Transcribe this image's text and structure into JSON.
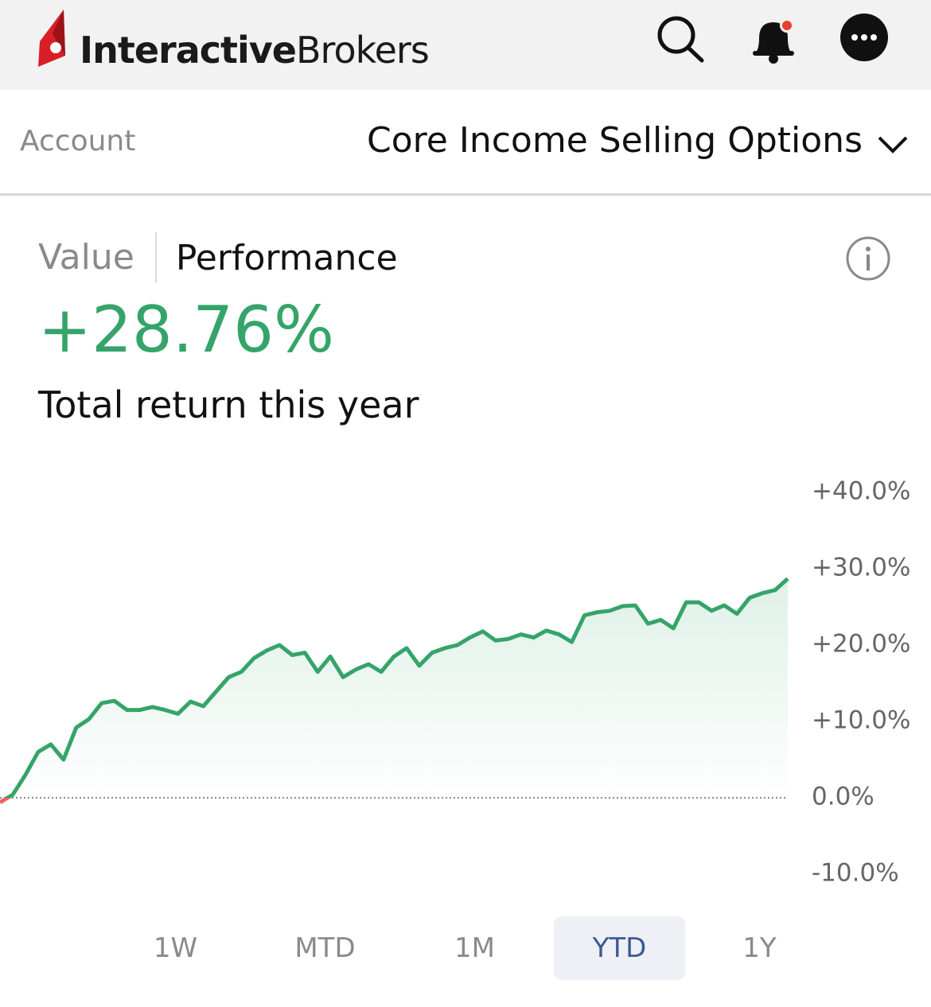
{
  "header": {
    "brand_bold": "Interactive",
    "brand_light": "Brokers"
  },
  "account": {
    "label": "Account",
    "name": "Core Income Selling Options"
  },
  "tabs": [
    "Value",
    "Performance"
  ],
  "summary": {
    "return": "+28.76%",
    "caption": "Total return this year"
  },
  "chart_data": {
    "type": "line",
    "color": "#35a46a",
    "negative_color": "#f0625f",
    "series": [
      {
        "values": [
          -0.6,
          0.4,
          3,
          6,
          7,
          5,
          9.2,
          10.3,
          12.4,
          12.7,
          11.5,
          11.5,
          11.9,
          11.5,
          11,
          12.6,
          12,
          13.9,
          15.8,
          16.5,
          18.3,
          19.3,
          20,
          18.7,
          19,
          16.5,
          18.5,
          15.8,
          16.8,
          17.5,
          16.5,
          18.5,
          19.6,
          17.3,
          19,
          19.6,
          20,
          21,
          21.8,
          20.6,
          20.8,
          21.4,
          21,
          21.9,
          21.4,
          20.4,
          23.9,
          24.3,
          24.5,
          25.1,
          25.2,
          22.8,
          23.3,
          22.2,
          25.6,
          25.6,
          24.5,
          25.2,
          24.1,
          26.2,
          26.8,
          27.2,
          28.7
        ]
      }
    ],
    "ylim": [
      -10,
      40
    ],
    "yticks": [
      {
        "value": 40,
        "label": "+40.0%"
      },
      {
        "value": 30,
        "label": "+30.0%"
      },
      {
        "value": 20,
        "label": "+20.0%"
      },
      {
        "value": 10,
        "label": "+10.0%"
      },
      {
        "value": 0,
        "label": "0.0%"
      },
      {
        "value": -10,
        "label": "-10.0%"
      }
    ]
  },
  "ranges": {
    "options": [
      "1W",
      "MTD",
      "1M",
      "YTD",
      "1Y"
    ],
    "selected": "YTD"
  }
}
